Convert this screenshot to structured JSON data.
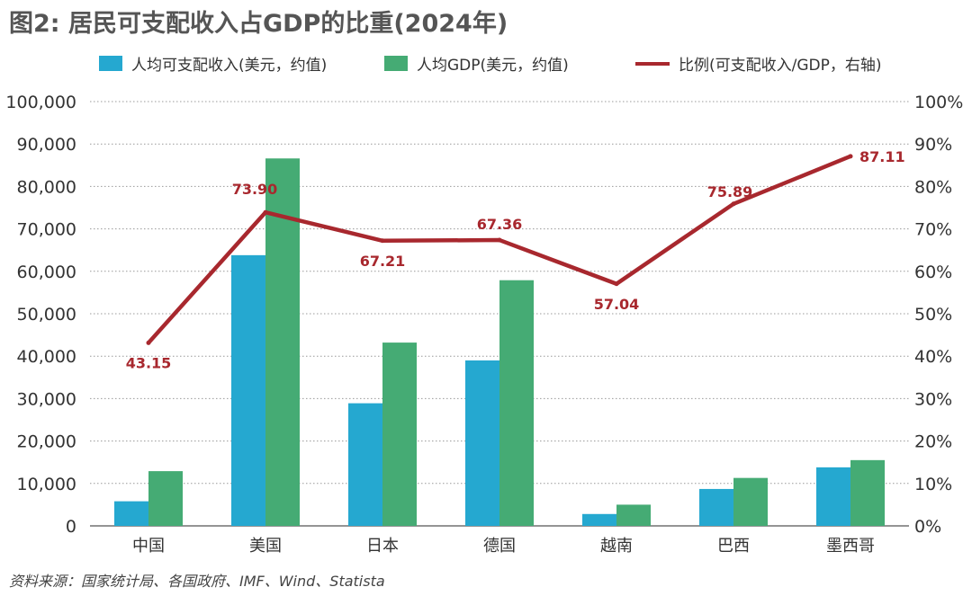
{
  "title": "图2: 居民可支配收入占GDP的比重(2024年)",
  "source": "资料来源：国家统计局、各国政府、IMF、Wind、Statista",
  "colors": {
    "income": "#25A8D0",
    "gdp": "#45AB74",
    "ratio": "#A8282E",
    "axis_text": "#333333",
    "grid": "#999999"
  },
  "legend": {
    "income": "人均可支配收入(美元，约值)",
    "gdp": "人均GDP(美元，约值)",
    "ratio": "比例(可支配收入/GDP，右轴)"
  },
  "chart_data": {
    "type": "bar",
    "categories": [
      "中国",
      "美国",
      "日本",
      "德国",
      "越南",
      "巴西",
      "墨西哥"
    ],
    "series": [
      {
        "name": "人均可支配收入(美元，约值)",
        "type": "bar",
        "axis": "left",
        "values": [
          5800,
          63800,
          28900,
          39000,
          2800,
          8700,
          13800
        ]
      },
      {
        "name": "人均GDP(美元，约值)",
        "type": "bar",
        "axis": "left",
        "values": [
          12900,
          86600,
          43200,
          57900,
          5000,
          11300,
          15500
        ]
      },
      {
        "name": "比例(可支配收入/GDP，右轴)",
        "type": "line",
        "axis": "right",
        "values": [
          43.15,
          73.9,
          67.21,
          67.36,
          57.04,
          75.89,
          87.11
        ],
        "labels": [
          "43.15",
          "73.90",
          "67.21",
          "67.36",
          "57.04",
          "75.89",
          "87.11"
        ],
        "label_positions": [
          "below",
          "above",
          "below",
          "above",
          "below",
          "above",
          "right"
        ]
      }
    ],
    "y_left": {
      "ylim": [
        0,
        100000
      ],
      "ticks": [
        "0",
        "10,000",
        "20,000",
        "30,000",
        "40,000",
        "50,000",
        "60,000",
        "70,000",
        "80,000",
        "90,000",
        "100,000"
      ]
    },
    "y_right": {
      "ylim": [
        0,
        100
      ],
      "ticks": [
        "0%",
        "10%",
        "20%",
        "30%",
        "40%",
        "50%",
        "60%",
        "70%",
        "80%",
        "90%",
        "100%"
      ]
    },
    "grid": "horizontal-dotted",
    "legend_position": "top"
  }
}
